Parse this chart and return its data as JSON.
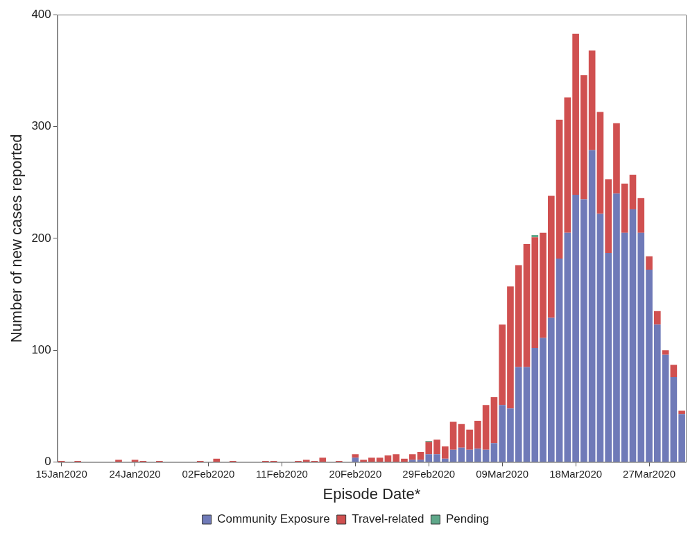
{
  "chart_data": {
    "type": "bar",
    "stacked": true,
    "xlabel": "Episode Date*",
    "ylabel": "Number of new cases reported",
    "categories": [
      "15Jan2020",
      null,
      null,
      null,
      null,
      null,
      null,
      null,
      null,
      "24Jan2020",
      null,
      null,
      null,
      null,
      null,
      null,
      null,
      null,
      "02Feb2020",
      null,
      null,
      null,
      null,
      null,
      null,
      null,
      null,
      "11Feb2020",
      null,
      null,
      null,
      null,
      null,
      null,
      null,
      null,
      "20Feb2020",
      null,
      null,
      null,
      null,
      null,
      null,
      null,
      null,
      "29Feb2020",
      null,
      null,
      null,
      null,
      null,
      null,
      null,
      null,
      "09Mar2020",
      null,
      null,
      null,
      null,
      null,
      null,
      null,
      null,
      "18Mar2020",
      null,
      null,
      null,
      null,
      null,
      null,
      null,
      null,
      "27Mar2020",
      null,
      null,
      null,
      null
    ],
    "series": [
      {
        "name": "Community Exposure",
        "color": "#6f7ab8",
        "values": [
          0,
          0,
          0,
          0,
          0,
          0,
          0,
          0,
          0,
          0,
          0,
          0,
          0,
          0,
          0,
          0,
          0,
          0,
          0,
          0,
          0,
          0,
          0,
          0,
          0,
          0,
          0,
          0,
          0,
          0,
          0,
          0,
          0,
          0,
          0,
          0,
          4,
          0,
          0,
          0,
          0,
          0,
          0,
          2,
          2,
          7,
          7,
          3,
          11,
          13,
          11,
          12,
          11,
          17,
          51,
          48,
          85,
          85,
          102,
          111,
          129,
          182,
          205,
          239,
          235,
          279,
          222,
          187,
          240,
          205,
          226,
          205,
          172,
          123,
          96,
          76,
          43
        ]
      },
      {
        "name": "Travel-related",
        "color": "#d05050",
        "values": [
          1,
          0,
          1,
          0,
          0,
          0,
          0,
          2,
          0,
          2,
          1,
          0,
          1,
          0,
          0,
          0,
          0,
          1,
          0,
          3,
          0,
          1,
          0,
          0,
          0,
          1,
          1,
          0,
          0,
          1,
          2,
          1,
          4,
          0,
          1,
          0,
          3,
          2,
          4,
          4,
          6,
          7,
          3,
          5,
          7,
          11,
          13,
          11,
          25,
          21,
          18,
          25,
          40,
          41,
          72,
          109,
          91,
          110,
          99,
          94,
          109,
          124,
          121,
          144,
          111,
          89,
          91,
          66,
          63,
          44,
          31,
          31,
          12,
          12,
          4,
          11,
          3
        ]
      },
      {
        "name": "Pending",
        "color": "#5fa88a",
        "values": [
          0,
          0,
          0,
          0,
          0,
          0,
          0,
          0,
          0,
          0,
          0,
          0,
          0,
          0,
          0,
          0,
          0,
          0,
          0,
          0,
          0,
          0,
          0,
          0,
          0,
          0,
          0,
          0,
          0,
          0,
          0,
          0,
          0,
          0,
          0,
          0,
          0,
          0,
          0,
          0,
          0,
          0,
          0,
          0,
          0,
          1,
          0,
          0,
          0,
          0,
          0,
          0,
          0,
          0,
          0,
          0,
          0,
          0,
          2,
          0,
          0,
          0,
          0,
          0,
          0,
          0,
          0,
          0,
          0,
          0,
          0,
          0,
          0,
          0,
          0,
          0,
          0
        ]
      }
    ],
    "ylim": [
      0,
      400
    ],
    "yticks": [
      0,
      100,
      200,
      300,
      400
    ],
    "grid": false,
    "legend": "bottom"
  }
}
